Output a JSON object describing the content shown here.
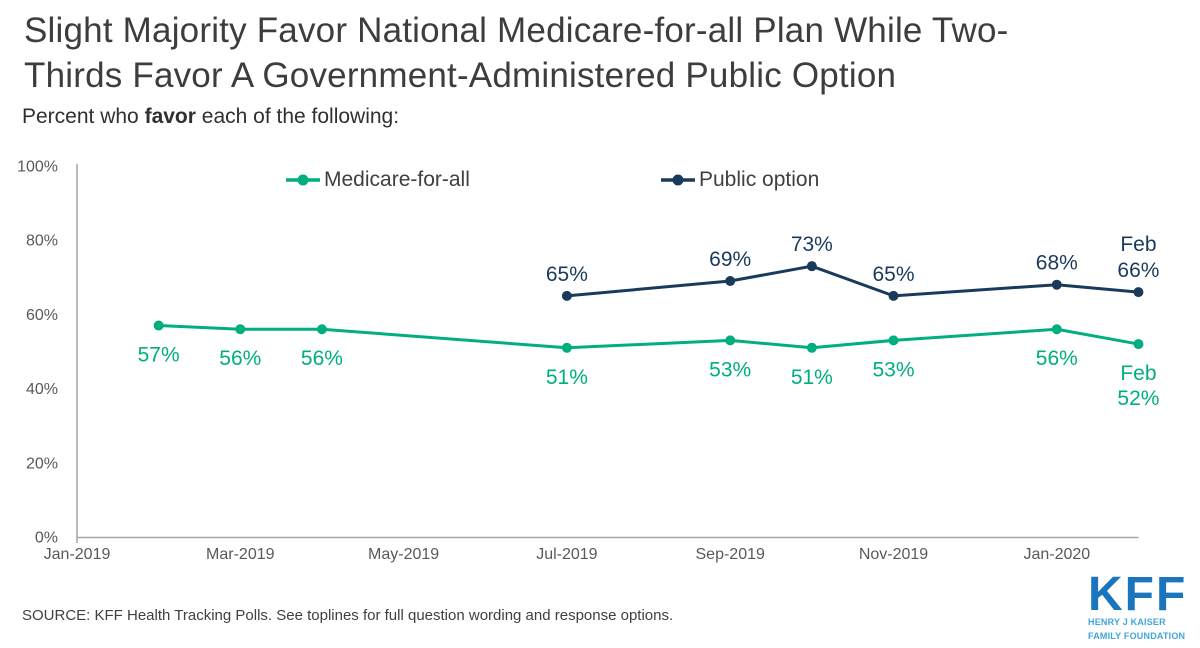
{
  "header": {
    "title_lines": [
      "Slight Majority Favor National Medicare-for-all Plan While Two-",
      "Thirds Favor A Government-Administered Public Option"
    ],
    "subtitle_prefix": "Percent who ",
    "subtitle_bold": "favor",
    "subtitle_suffix": " each of the following:"
  },
  "chart_data": {
    "type": "line",
    "title": "Slight Majority Favor National Medicare-for-all Plan While Two-Thirds Favor A Government-Administered Public Option",
    "subtitle": "Percent who favor each of the following:",
    "grid": false,
    "legend_position": "top",
    "x_axis": {
      "range": [
        "Jan-2019",
        "Feb-2020"
      ],
      "ticks": [
        {
          "month": 0,
          "label": "Jan-2019"
        },
        {
          "month": 2,
          "label": "Mar-2019"
        },
        {
          "month": 4,
          "label": "May-2019"
        },
        {
          "month": 6,
          "label": "Jul-2019"
        },
        {
          "month": 8,
          "label": "Sep-2019"
        },
        {
          "month": 10,
          "label": "Nov-2019"
        },
        {
          "month": 12,
          "label": "Jan-2020"
        }
      ]
    },
    "y_axis": {
      "min": 0,
      "max": 100,
      "ticks": [
        {
          "value": 0,
          "label": "0%"
        },
        {
          "value": 20,
          "label": "20%"
        },
        {
          "value": 40,
          "label": "40%"
        },
        {
          "value": 60,
          "label": "60%"
        },
        {
          "value": 80,
          "label": "80%"
        },
        {
          "value": 100,
          "label": "100%"
        }
      ]
    },
    "series": [
      {
        "name": "Medicare-for-all",
        "color": "#00AE80",
        "label_side": "below",
        "points": [
          {
            "date": "Feb-2019",
            "month": 1,
            "value": 57,
            "label": "57%"
          },
          {
            "date": "Mar-2019",
            "month": 2,
            "value": 56,
            "label": "56%"
          },
          {
            "date": "Apr-2019",
            "month": 3,
            "value": 56,
            "label": "56%"
          },
          {
            "date": "Jul-2019",
            "month": 6,
            "value": 51,
            "label": "51%"
          },
          {
            "date": "Sep-2019",
            "month": 8,
            "value": 53,
            "label": "53%"
          },
          {
            "date": "Oct-2019",
            "month": 9,
            "value": 51,
            "label": "51%"
          },
          {
            "date": "Nov-2019",
            "month": 10,
            "value": 53,
            "label": "53%"
          },
          {
            "date": "Jan-2020",
            "month": 12,
            "value": 56,
            "label": "56%"
          },
          {
            "date": "Feb-2020",
            "month": 13,
            "value": 52,
            "label": "Feb\n52%"
          }
        ]
      },
      {
        "name": "Public option",
        "color": "#1A3A5C",
        "label_side": "above",
        "points": [
          {
            "date": "Jul-2019",
            "month": 6,
            "value": 65,
            "label": "65%"
          },
          {
            "date": "Sep-2019",
            "month": 8,
            "value": 69,
            "label": "69%"
          },
          {
            "date": "Oct-2019",
            "month": 9,
            "value": 73,
            "label": "73%"
          },
          {
            "date": "Nov-2019",
            "month": 10,
            "value": 65,
            "label": "65%"
          },
          {
            "date": "Jan-2020",
            "month": 12,
            "value": 68,
            "label": "68%"
          },
          {
            "date": "Feb-2020",
            "month": 13,
            "value": 66,
            "label": "Feb\n66%"
          }
        ]
      }
    ]
  },
  "footer": {
    "source": "SOURCE: KFF Health Tracking Polls. See toplines for full question wording and response options.",
    "logo": {
      "acronym": "KFF",
      "line1": "HENRY J KAISER",
      "line2": "FAMILY FOUNDATION",
      "color": "#1B75BC",
      "subcolor": "#41A5DA"
    }
  }
}
